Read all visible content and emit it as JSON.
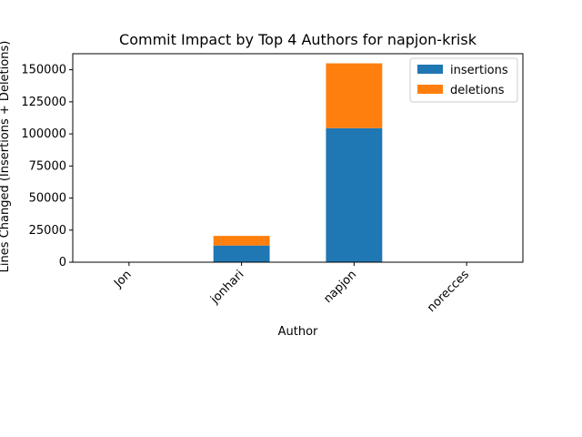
{
  "chart_data": {
    "type": "bar",
    "stacked": true,
    "title": "Commit Impact by Top 4 Authors for napjon-krisk",
    "xlabel": "Author",
    "ylabel": "Lines Changed (Insertions + Deletions)",
    "categories": [
      "Jon",
      "jonhari",
      "napjon",
      "norecces"
    ],
    "series": [
      {
        "name": "insertions",
        "color": "#1f77b4",
        "values": [
          0,
          13000,
          104500,
          0
        ]
      },
      {
        "name": "deletions",
        "color": "#ff7f0e",
        "values": [
          0,
          7500,
          50500,
          0
        ]
      }
    ],
    "ylim": [
      0,
      162500
    ],
    "yticks": [
      0,
      25000,
      50000,
      75000,
      100000,
      125000,
      150000
    ],
    "ytick_labels": [
      "0",
      "25000",
      "50000",
      "75000",
      "100000",
      "125000",
      "150000"
    ],
    "legend_position": "top-right",
    "grid": false
  }
}
